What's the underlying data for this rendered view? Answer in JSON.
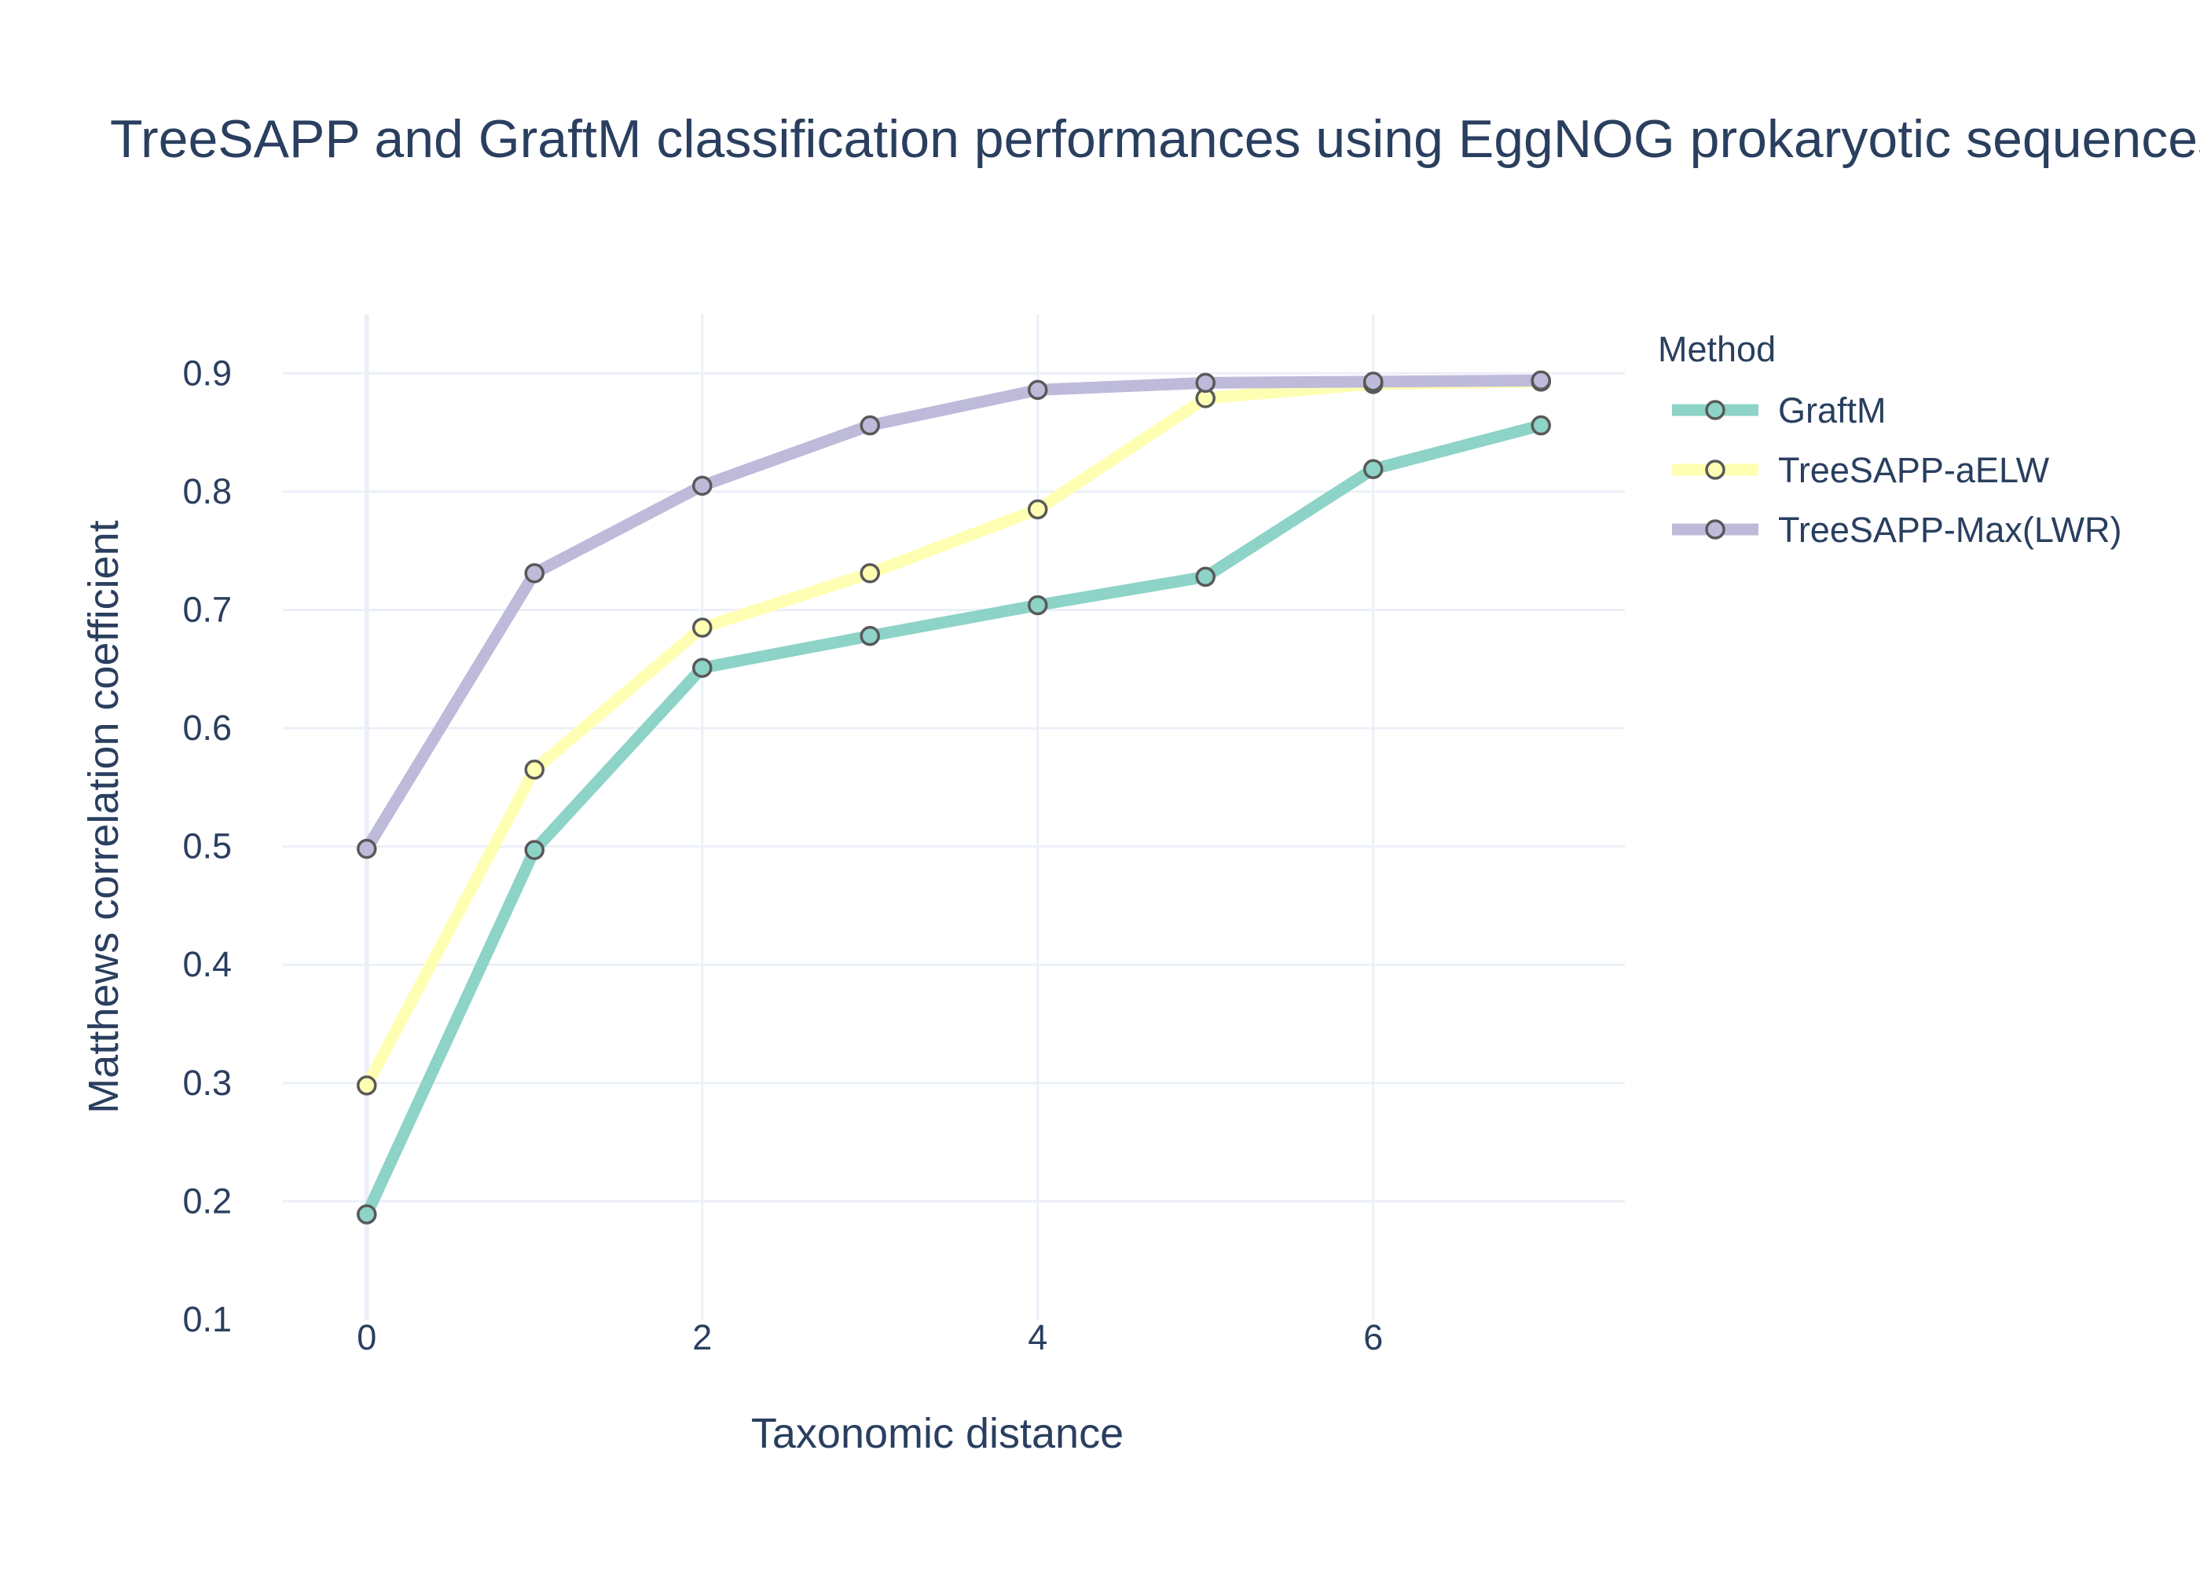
{
  "chart_data": {
    "type": "line",
    "title": "TreeSAPP and GraftM classification performances using EggNOG prokaryotic sequences",
    "xlabel": "Taxonomic distance",
    "ylabel": "Matthews correlation coefficient",
    "xlim": [
      -0.5,
      7.5
    ],
    "ylim": [
      0.1,
      0.95
    ],
    "x_ticks": [
      0,
      2,
      4,
      6
    ],
    "y_ticks": [
      0.1,
      0.2,
      0.3,
      0.4,
      0.5,
      0.6,
      0.7,
      0.8,
      0.9
    ],
    "grid": true,
    "legend": {
      "title": "Method",
      "placement": "top-right outside"
    },
    "x": [
      0,
      1,
      2,
      3,
      4,
      5,
      6,
      7
    ],
    "series": [
      {
        "name": "GraftM",
        "color": "#8dd3c7",
        "values": [
          0.189,
          0.497,
          0.651,
          0.678,
          0.704,
          0.728,
          0.819,
          0.856
        ]
      },
      {
        "name": "TreeSAPP-aELW",
        "color": "#ffffb3",
        "values": [
          0.298,
          0.565,
          0.685,
          0.731,
          0.785,
          0.879,
          0.891,
          0.893
        ]
      },
      {
        "name": "TreeSAPP-Max(LWR)",
        "color": "#bebada",
        "values": [
          0.498,
          0.731,
          0.805,
          0.856,
          0.886,
          0.892,
          0.893,
          0.894
        ]
      }
    ]
  }
}
